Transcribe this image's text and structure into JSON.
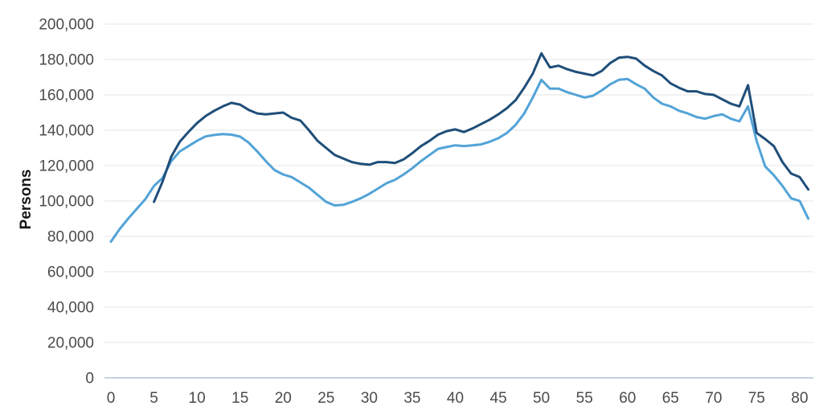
{
  "chart_data": {
    "type": "line",
    "title": "",
    "xlabel": "",
    "ylabel": "Persons",
    "xlim": [
      0,
      80
    ],
    "ylim": [
      0,
      200000
    ],
    "grid": "horizontal",
    "legend": "none",
    "colors": {
      "gridline": "#e9e9e9",
      "axis_line": "#c7d1e3",
      "tick_label": "#4b4b4d",
      "axis_title": "#161616"
    },
    "y_ticks": [
      {
        "value": 0,
        "label": "0"
      },
      {
        "value": 20000,
        "label": "20,000"
      },
      {
        "value": 40000,
        "label": "40,000"
      },
      {
        "value": 60000,
        "label": "60,000"
      },
      {
        "value": 80000,
        "label": "80,000"
      },
      {
        "value": 100000,
        "label": "100,000"
      },
      {
        "value": 120000,
        "label": "120,000"
      },
      {
        "value": 140000,
        "label": "140,000"
      },
      {
        "value": 160000,
        "label": "160,000"
      },
      {
        "value": 180000,
        "label": "180,000"
      },
      {
        "value": 200000,
        "label": "200,000"
      }
    ],
    "x_ticks": [
      {
        "value": 0,
        "label": "0"
      },
      {
        "value": 5,
        "label": "5"
      },
      {
        "value": 10,
        "label": "10"
      },
      {
        "value": 15,
        "label": "15"
      },
      {
        "value": 20,
        "label": "20"
      },
      {
        "value": 25,
        "label": "25"
      },
      {
        "value": 30,
        "label": "30"
      },
      {
        "value": 35,
        "label": "35"
      },
      {
        "value": 40,
        "label": "40"
      },
      {
        "value": 45,
        "label": "45"
      },
      {
        "value": 50,
        "label": "50"
      },
      {
        "value": 55,
        "label": "55"
      },
      {
        "value": 60,
        "label": "60"
      },
      {
        "value": 65,
        "label": "65"
      },
      {
        "value": 70,
        "label": "70"
      },
      {
        "value": 75,
        "label": "75"
      },
      {
        "value": 80,
        "label": "80"
      }
    ],
    "series": [
      {
        "name": "light-blue-line",
        "color": "#52a3d7",
        "start_x": 0,
        "step": 1,
        "values": [
          77000,
          84000,
          90000,
          95500,
          101000,
          108500,
          113000,
          122500,
          128000,
          131000,
          134000,
          136500,
          137300,
          137800,
          137500,
          136400,
          133000,
          128000,
          122500,
          117500,
          115000,
          113500,
          110500,
          107500,
          103500,
          99500,
          97500,
          97800,
          99500,
          101500,
          104000,
          107000,
          110000,
          112000,
          115000,
          118500,
          122500,
          126000,
          129500,
          130500,
          131500,
          131000,
          131500,
          132000,
          133500,
          135500,
          138500,
          143000,
          149500,
          158500,
          168500,
          163500,
          163500,
          161500,
          160000,
          158500,
          159500,
          162500,
          166000,
          168500,
          169000,
          166000,
          163500,
          158500,
          155000,
          153500,
          151000,
          149500,
          147500,
          146500,
          148000,
          149000,
          146500,
          145000,
          153500,
          134000,
          119500,
          114500,
          108500,
          101500,
          100000,
          90000
        ]
      },
      {
        "name": "dark-blue-line",
        "color": "#1f4e79",
        "start_x": 5,
        "step": 1,
        "values": [
          99500,
          111000,
          125000,
          133500,
          139000,
          144000,
          148000,
          151000,
          153500,
          155500,
          154500,
          151500,
          149500,
          149000,
          149500,
          150000,
          147000,
          145500,
          140000,
          134000,
          130000,
          126000,
          124000,
          122000,
          121000,
          120500,
          122000,
          122000,
          121500,
          123500,
          127000,
          131000,
          134000,
          137500,
          139500,
          140500,
          139000,
          141000,
          143500,
          146000,
          149000,
          152500,
          157000,
          164000,
          172000,
          183500,
          175500,
          176500,
          174500,
          173000,
          172000,
          171000,
          173500,
          178000,
          181000,
          181500,
          180500,
          176500,
          173500,
          171000,
          166500,
          164000,
          162000,
          162000,
          160500,
          160000,
          157500,
          155000,
          153500,
          165500,
          138500,
          135000,
          131000,
          122000,
          115500,
          113500,
          106500
        ]
      }
    ]
  }
}
